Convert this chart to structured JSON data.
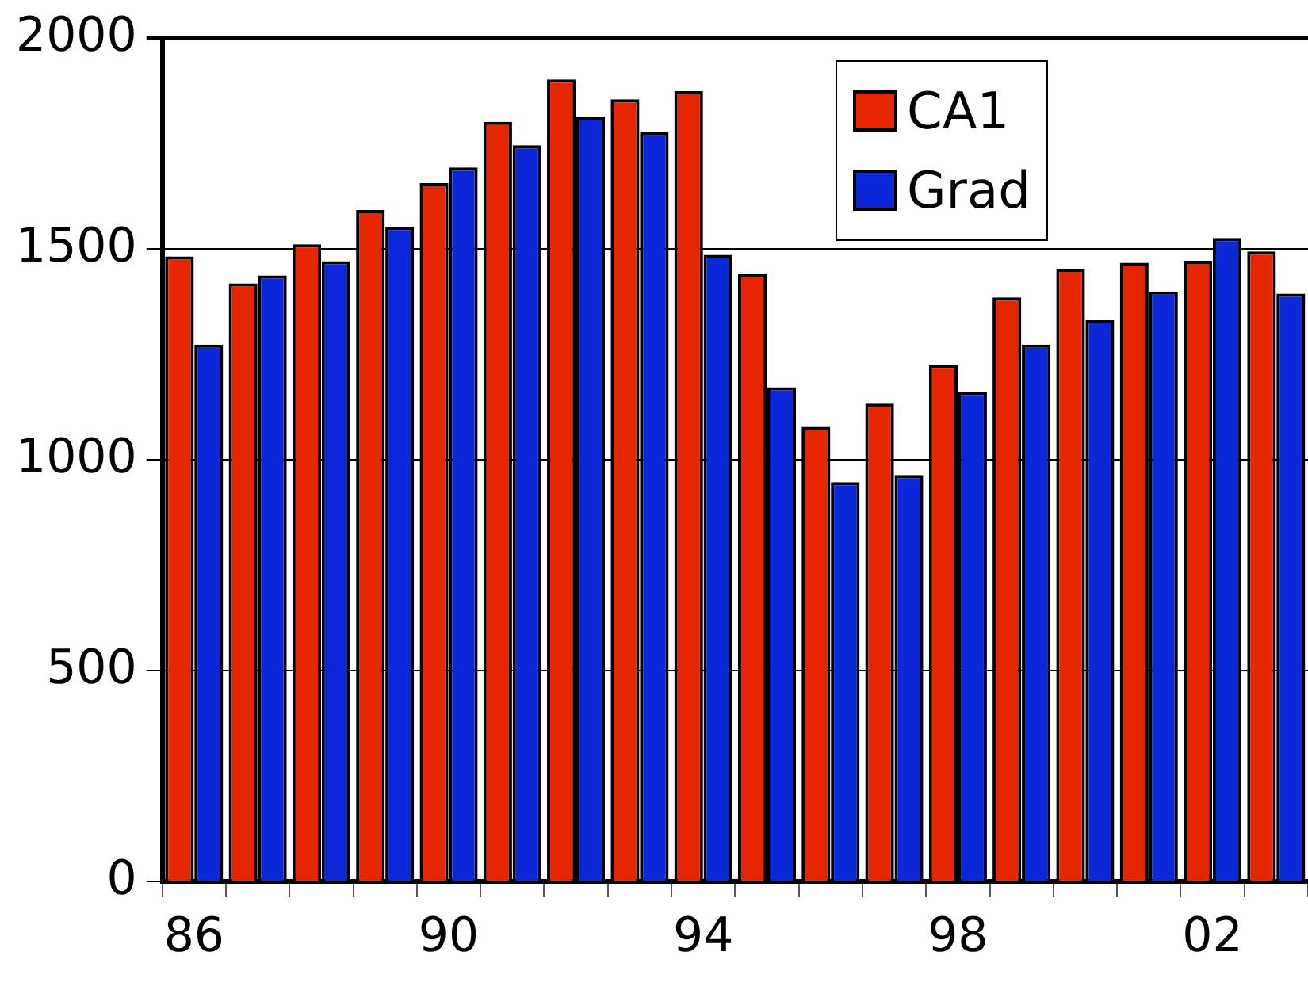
{
  "chart_data": {
    "type": "bar",
    "categories": [
      "86",
      null,
      null,
      null,
      "90",
      null,
      null,
      null,
      "94",
      null,
      null,
      null,
      "98",
      null,
      null,
      null,
      "02",
      null
    ],
    "series": [
      {
        "name": "CA1",
        "color": "#e62600",
        "values": [
          1482,
          1418,
          1511,
          1592,
          1656,
          1801,
          1902,
          1855,
          1874,
          1440,
          1078,
          1133,
          1225,
          1385,
          1453,
          1467,
          1472,
          1494
        ]
      },
      {
        "name": "Grad",
        "color": "#0a28d8",
        "values": [
          1273,
          1437,
          1471,
          1552,
          1693,
          1746,
          1814,
          1777,
          1486,
          1172,
          947,
          964,
          1161,
          1273,
          1331,
          1399,
          1526,
          1394
        ]
      }
    ],
    "ylim": [
      0,
      2000
    ],
    "yticks": [
      0,
      500,
      1000,
      1500,
      2000
    ],
    "grid": "y",
    "legend": "top"
  }
}
